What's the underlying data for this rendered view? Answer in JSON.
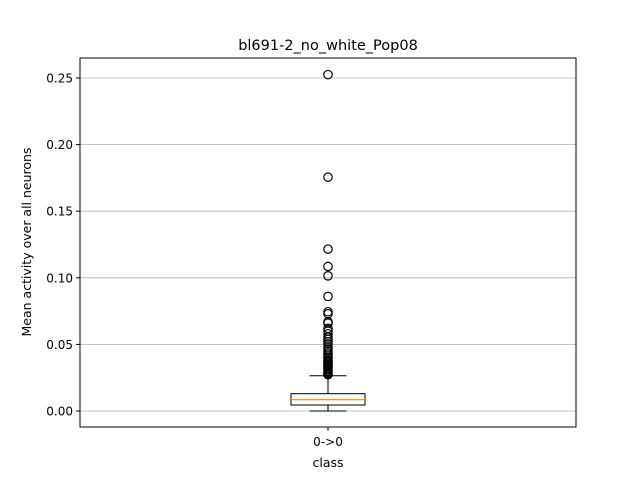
{
  "chart_data": {
    "type": "box",
    "title": "bl691-2_no_white_Pop08",
    "xlabel": "class",
    "ylabel": "Mean activity over all neurons",
    "categories": [
      "0->0"
    ],
    "ylim": [
      -0.012,
      0.265
    ],
    "yticks": [
      0.0,
      0.05,
      0.1,
      0.15,
      0.2,
      0.25
    ],
    "ytick_labels": [
      "0.00",
      "0.05",
      "0.10",
      "0.15",
      "0.20",
      "0.25"
    ],
    "grid": "y",
    "box": {
      "whisker_low": 0.0,
      "q1": 0.0045,
      "median": 0.0085,
      "q3": 0.013,
      "whisker_high": 0.0265
    },
    "outliers": [
      0.2525,
      0.1755,
      0.1215,
      0.1085,
      0.1015,
      0.086,
      0.0745,
      0.073,
      0.067,
      0.066,
      0.062,
      0.06,
      0.058,
      0.0555,
      0.054,
      0.052,
      0.0505,
      0.048,
      0.0465,
      0.045,
      0.0435,
      0.042,
      0.0405,
      0.0395,
      0.038,
      0.037,
      0.036,
      0.035,
      0.034,
      0.033,
      0.032,
      0.031,
      0.03,
      0.029,
      0.028,
      0.0272
    ],
    "colors": {
      "box": "#000000",
      "median": "#ff7f0e",
      "grid": "#b0b0b0"
    }
  }
}
